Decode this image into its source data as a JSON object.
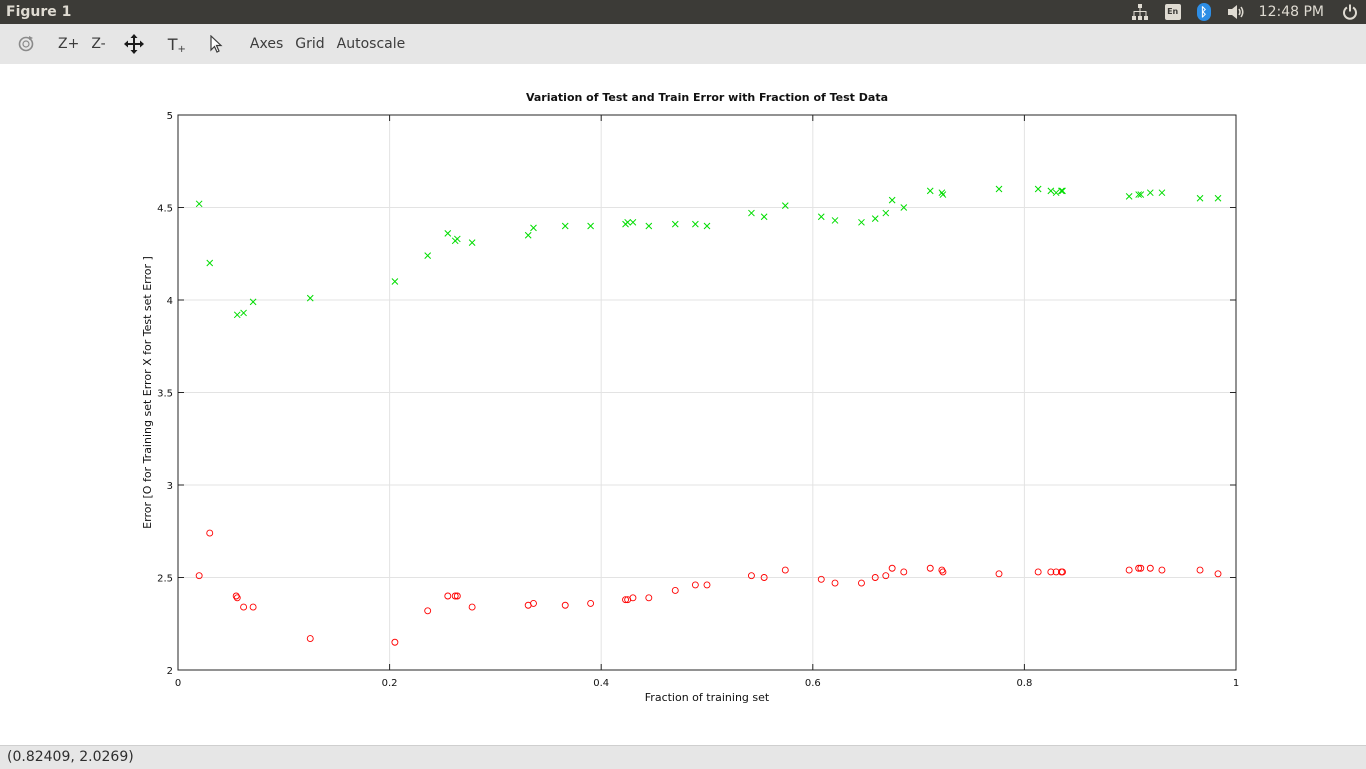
{
  "window": {
    "title": "Figure 1"
  },
  "tray": {
    "network_icon": "network-icon",
    "keyboard_label": "En",
    "bluetooth_icon": "bluetooth-icon",
    "volume_icon": "volume-icon",
    "clock": "12:48 PM",
    "power_icon": "power-icon"
  },
  "toolbar": {
    "zoom_in_label": "Z+",
    "zoom_out_label": "Z-",
    "insert_text_label": "T",
    "axes_label": "Axes",
    "grid_label": "Grid",
    "autoscale_label": "Autoscale"
  },
  "status": {
    "coords": "(0.82409, 2.0269)"
  },
  "chart_data": {
    "type": "scatter",
    "title": "Variation of Test and Train Error with Fraction of Test Data",
    "xlabel": "Fraction of training set",
    "ylabel": "Error [O for Training set Error X for Test set Error ]",
    "xlim": [
      0,
      1
    ],
    "ylim": [
      2,
      5
    ],
    "xticks": [
      0,
      0.2,
      0.4,
      0.6,
      0.8,
      1
    ],
    "xtick_labels": [
      "0",
      "0.2",
      "0.4",
      "0.6",
      "0.8",
      "1"
    ],
    "yticks": [
      2,
      2.5,
      3,
      3.5,
      4,
      4.5,
      5
    ],
    "ytick_labels": [
      "2",
      "2.5",
      "3",
      "3.5",
      "4",
      "4.5",
      "5"
    ],
    "grid": true,
    "series": [
      {
        "marker": "o",
        "color": "#ff0000",
        "points": [
          [
            0.02,
            2.51
          ],
          [
            0.03,
            2.74
          ],
          [
            0.055,
            2.4
          ],
          [
            0.056,
            2.39
          ],
          [
            0.062,
            2.34
          ],
          [
            0.071,
            2.34
          ],
          [
            0.125,
            2.17
          ],
          [
            0.205,
            2.15
          ],
          [
            0.236,
            2.32
          ],
          [
            0.255,
            2.4
          ],
          [
            0.262,
            2.4
          ],
          [
            0.264,
            2.4
          ],
          [
            0.278,
            2.34
          ],
          [
            0.331,
            2.35
          ],
          [
            0.336,
            2.36
          ],
          [
            0.366,
            2.35
          ],
          [
            0.39,
            2.36
          ],
          [
            0.423,
            2.38
          ],
          [
            0.425,
            2.38
          ],
          [
            0.43,
            2.39
          ],
          [
            0.445,
            2.39
          ],
          [
            0.47,
            2.43
          ],
          [
            0.489,
            2.46
          ],
          [
            0.5,
            2.46
          ],
          [
            0.542,
            2.51
          ],
          [
            0.554,
            2.5
          ],
          [
            0.574,
            2.54
          ],
          [
            0.608,
            2.49
          ],
          [
            0.621,
            2.47
          ],
          [
            0.646,
            2.47
          ],
          [
            0.659,
            2.5
          ],
          [
            0.669,
            2.51
          ],
          [
            0.675,
            2.55
          ],
          [
            0.686,
            2.53
          ],
          [
            0.711,
            2.55
          ],
          [
            0.722,
            2.54
          ],
          [
            0.723,
            2.53
          ],
          [
            0.776,
            2.52
          ],
          [
            0.813,
            2.53
          ],
          [
            0.825,
            2.53
          ],
          [
            0.83,
            2.53
          ],
          [
            0.835,
            2.53
          ],
          [
            0.836,
            2.53
          ],
          [
            0.899,
            2.54
          ],
          [
            0.908,
            2.55
          ],
          [
            0.91,
            2.55
          ],
          [
            0.919,
            2.55
          ],
          [
            0.93,
            2.54
          ],
          [
            0.966,
            2.54
          ],
          [
            0.983,
            2.52
          ]
        ]
      },
      {
        "marker": "x",
        "color": "#00dd00",
        "points": [
          [
            0.02,
            4.52
          ],
          [
            0.03,
            4.2
          ],
          [
            0.056,
            3.92
          ],
          [
            0.062,
            3.93
          ],
          [
            0.071,
            3.99
          ],
          [
            0.125,
            4.01
          ],
          [
            0.205,
            4.1
          ],
          [
            0.236,
            4.24
          ],
          [
            0.255,
            4.36
          ],
          [
            0.262,
            4.32
          ],
          [
            0.264,
            4.33
          ],
          [
            0.278,
            4.31
          ],
          [
            0.331,
            4.35
          ],
          [
            0.336,
            4.39
          ],
          [
            0.366,
            4.4
          ],
          [
            0.39,
            4.4
          ],
          [
            0.423,
            4.41
          ],
          [
            0.425,
            4.42
          ],
          [
            0.43,
            4.42
          ],
          [
            0.445,
            4.4
          ],
          [
            0.47,
            4.41
          ],
          [
            0.489,
            4.41
          ],
          [
            0.5,
            4.4
          ],
          [
            0.542,
            4.47
          ],
          [
            0.554,
            4.45
          ],
          [
            0.574,
            4.51
          ],
          [
            0.608,
            4.45
          ],
          [
            0.621,
            4.43
          ],
          [
            0.646,
            4.42
          ],
          [
            0.659,
            4.44
          ],
          [
            0.669,
            4.47
          ],
          [
            0.675,
            4.54
          ],
          [
            0.686,
            4.5
          ],
          [
            0.711,
            4.59
          ],
          [
            0.722,
            4.58
          ],
          [
            0.723,
            4.57
          ],
          [
            0.776,
            4.6
          ],
          [
            0.813,
            4.6
          ],
          [
            0.825,
            4.59
          ],
          [
            0.83,
            4.58
          ],
          [
            0.835,
            4.59
          ],
          [
            0.836,
            4.59
          ],
          [
            0.899,
            4.56
          ],
          [
            0.908,
            4.57
          ],
          [
            0.91,
            4.57
          ],
          [
            0.919,
            4.58
          ],
          [
            0.93,
            4.58
          ],
          [
            0.966,
            4.55
          ],
          [
            0.983,
            4.55
          ]
        ]
      }
    ]
  }
}
